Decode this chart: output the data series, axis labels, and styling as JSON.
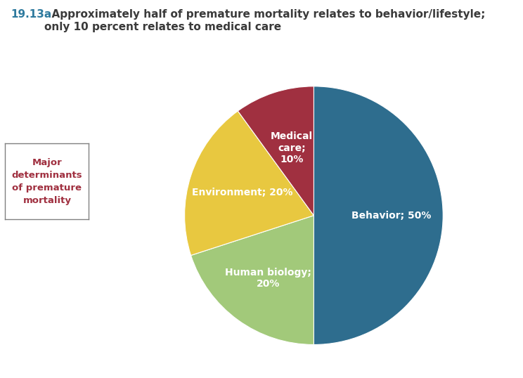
{
  "title_number": "19.13a",
  "title_text": "  Approximately half of premature mortality relates to behavior/lifestyle;\nonly 10 percent relates to medical care",
  "title_number_color": "#2E7A9E",
  "title_text_color": "#3A3A3A",
  "slices": [
    {
      "label": "Behavior; 50%",
      "value": 50,
      "color": "#2E6D8E",
      "text_color": "white",
      "r": 0.6
    },
    {
      "label": "Human biology;\n20%",
      "value": 20,
      "color": "#A2C97A",
      "text_color": "white",
      "r": 0.6
    },
    {
      "label": "Environment; 20%",
      "value": 20,
      "color": "#E8C840",
      "text_color": "white",
      "r": 0.58
    },
    {
      "label": "Medical\ncare;\n10%",
      "value": 10,
      "color": "#A03040",
      "text_color": "white",
      "r": 0.55
    }
  ],
  "legend_text": "Major\ndeterminants\nof premature\nmortality",
  "legend_text_color": "#A03040",
  "legend_box_color": "white",
  "legend_edge_color": "#808080",
  "background_color": "white",
  "start_angle": 90
}
